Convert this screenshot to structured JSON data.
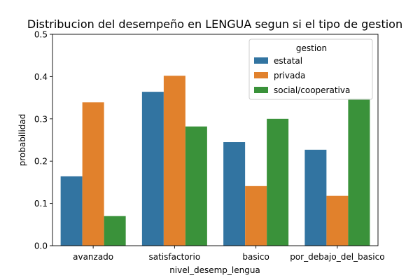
{
  "chart_data": {
    "type": "bar",
    "title": "Distribucion del desempeño en LENGUA segun si el tipo de gestion",
    "xlabel": "nivel_desemp_lengua",
    "ylabel": "probabilidad",
    "ylim": [
      0,
      0.5
    ],
    "yticks": [
      "0.0",
      "0.1",
      "0.2",
      "0.3",
      "0.4",
      "0.5"
    ],
    "categories": [
      "avanzado",
      "satisfactorio",
      "basico",
      "por_debajo_del_basico"
    ],
    "legend": {
      "title": "gestion",
      "placement": "top-right"
    },
    "series": [
      {
        "name": "estatal",
        "color": "#3274a1",
        "values": [
          0.164,
          0.364,
          0.245,
          0.227
        ]
      },
      {
        "name": "privada",
        "color": "#e1812c",
        "values": [
          0.339,
          0.402,
          0.141,
          0.118
        ]
      },
      {
        "name": "social/cooperativa",
        "color": "#3a923a",
        "values": [
          0.07,
          0.282,
          0.3,
          0.348
        ]
      }
    ]
  }
}
